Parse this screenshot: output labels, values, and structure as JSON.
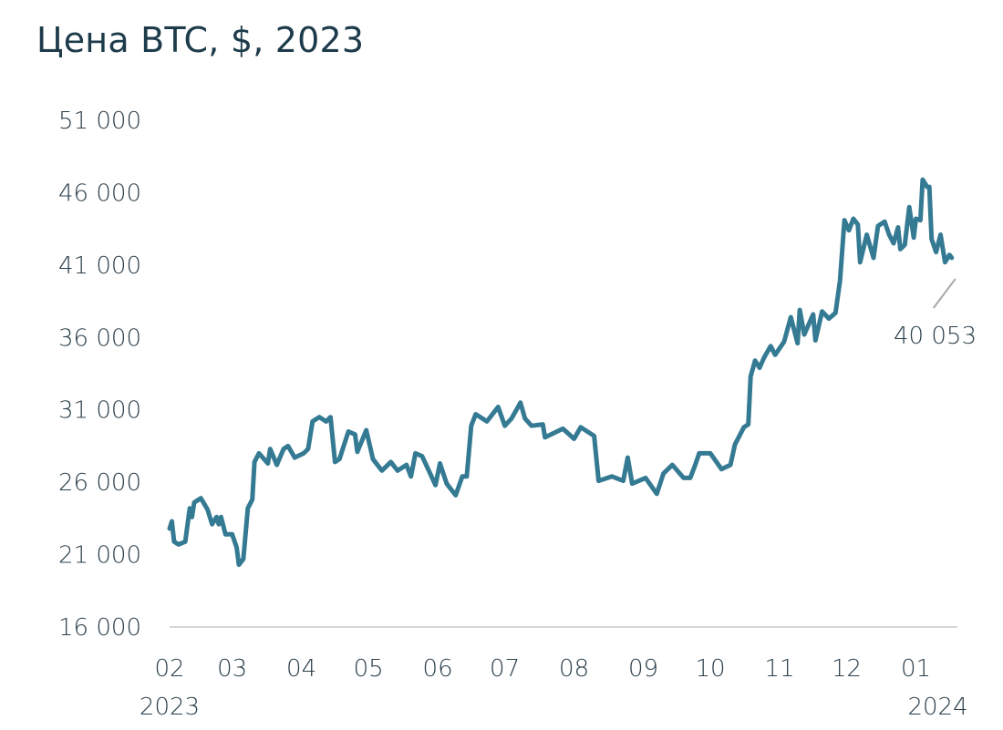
{
  "chart_data": {
    "type": "line",
    "title": "Цена BTC, $, 2023",
    "xlabel": "",
    "ylabel": "",
    "ylim": [
      16000,
      51000
    ],
    "yticks": [
      16000,
      21000,
      26000,
      31000,
      36000,
      41000,
      46000,
      51000
    ],
    "ytick_labels": [
      "16 000",
      "21 000",
      "26 000",
      "31 000",
      "36 000",
      "41 000",
      "46 000",
      "51 000"
    ],
    "xticks": [
      {
        "date": "2023-02-01",
        "label": "02",
        "year": "2023"
      },
      {
        "date": "2023-03-01",
        "label": "03"
      },
      {
        "date": "2023-04-01",
        "label": "04"
      },
      {
        "date": "2023-05-01",
        "label": "05"
      },
      {
        "date": "2023-06-01",
        "label": "06"
      },
      {
        "date": "2023-07-01",
        "label": "07"
      },
      {
        "date": "2023-08-01",
        "label": "08"
      },
      {
        "date": "2023-09-01",
        "label": "09"
      },
      {
        "date": "2023-10-01",
        "label": "10"
      },
      {
        "date": "2023-11-01",
        "label": "11"
      },
      {
        "date": "2023-12-01",
        "label": "12"
      },
      {
        "date": "2024-01-01",
        "label": "01",
        "year": "2024"
      }
    ],
    "grid": false,
    "baseline": true,
    "line_color": "#357a93",
    "annotation": {
      "label": "40 053"
    },
    "series": [
      {
        "points": [
          [
            "2023-02-01",
            22800
          ],
          [
            "2023-02-02",
            23300
          ],
          [
            "2023-02-03",
            21900
          ],
          [
            "2023-02-05",
            21700
          ],
          [
            "2023-02-08",
            21900
          ],
          [
            "2023-02-10",
            24200
          ],
          [
            "2023-02-11",
            23600
          ],
          [
            "2023-02-12",
            24600
          ],
          [
            "2023-02-15",
            24900
          ],
          [
            "2023-02-18",
            24100
          ],
          [
            "2023-02-20",
            23100
          ],
          [
            "2023-02-22",
            23600
          ],
          [
            "2023-02-23",
            23100
          ],
          [
            "2023-02-24",
            23600
          ],
          [
            "2023-02-26",
            22400
          ],
          [
            "2023-03-01",
            22400
          ],
          [
            "2023-03-03",
            21500
          ],
          [
            "2023-03-04",
            20300
          ],
          [
            "2023-03-06",
            20700
          ],
          [
            "2023-03-08",
            24200
          ],
          [
            "2023-03-10",
            24800
          ],
          [
            "2023-03-11",
            27400
          ],
          [
            "2023-03-13",
            28000
          ],
          [
            "2023-03-17",
            27300
          ],
          [
            "2023-03-18",
            28300
          ],
          [
            "2023-03-21",
            27200
          ],
          [
            "2023-03-24",
            28300
          ],
          [
            "2023-03-26",
            28500
          ],
          [
            "2023-03-29",
            27700
          ],
          [
            "2023-04-02",
            28000
          ],
          [
            "2023-04-04",
            28300
          ],
          [
            "2023-04-06",
            30200
          ],
          [
            "2023-04-09",
            30500
          ],
          [
            "2023-04-12",
            30200
          ],
          [
            "2023-04-14",
            30500
          ],
          [
            "2023-04-16",
            27400
          ],
          [
            "2023-04-18",
            27600
          ],
          [
            "2023-04-22",
            29500
          ],
          [
            "2023-04-25",
            29300
          ],
          [
            "2023-04-26",
            28100
          ],
          [
            "2023-04-30",
            29600
          ],
          [
            "2023-05-03",
            27600
          ],
          [
            "2023-05-07",
            26800
          ],
          [
            "2023-05-11",
            27400
          ],
          [
            "2023-05-14",
            26800
          ],
          [
            "2023-05-18",
            27200
          ],
          [
            "2023-05-20",
            26400
          ],
          [
            "2023-05-22",
            28000
          ],
          [
            "2023-05-25",
            27800
          ],
          [
            "2023-05-28",
            26800
          ],
          [
            "2023-05-31",
            25800
          ],
          [
            "2023-06-02",
            27300
          ],
          [
            "2023-06-05",
            25900
          ],
          [
            "2023-06-09",
            25100
          ],
          [
            "2023-06-12",
            26400
          ],
          [
            "2023-06-14",
            26400
          ],
          [
            "2023-06-16",
            29900
          ],
          [
            "2023-06-18",
            30700
          ],
          [
            "2023-06-23",
            30200
          ],
          [
            "2023-06-28",
            31200
          ],
          [
            "2023-07-01",
            29900
          ],
          [
            "2023-07-04",
            30400
          ],
          [
            "2023-07-08",
            31500
          ],
          [
            "2023-07-10",
            30400
          ],
          [
            "2023-07-13",
            29900
          ],
          [
            "2023-07-18",
            30000
          ],
          [
            "2023-07-19",
            29100
          ],
          [
            "2023-07-27",
            29700
          ],
          [
            "2023-08-01",
            29000
          ],
          [
            "2023-08-04",
            29800
          ],
          [
            "2023-08-10",
            29200
          ],
          [
            "2023-08-12",
            26100
          ],
          [
            "2023-08-18",
            26400
          ],
          [
            "2023-08-23",
            26100
          ],
          [
            "2023-08-25",
            27700
          ],
          [
            "2023-08-27",
            25900
          ],
          [
            "2023-09-02",
            26300
          ],
          [
            "2023-09-07",
            25200
          ],
          [
            "2023-09-10",
            26600
          ],
          [
            "2023-09-14",
            27200
          ],
          [
            "2023-09-19",
            26300
          ],
          [
            "2023-09-22",
            26300
          ],
          [
            "2023-09-24",
            27100
          ],
          [
            "2023-09-26",
            28000
          ],
          [
            "2023-10-01",
            28000
          ],
          [
            "2023-10-06",
            26900
          ],
          [
            "2023-10-10",
            27200
          ],
          [
            "2023-10-12",
            28600
          ],
          [
            "2023-10-16",
            29800
          ],
          [
            "2023-10-18",
            30000
          ],
          [
            "2023-10-19",
            33300
          ],
          [
            "2023-10-21",
            34400
          ],
          [
            "2023-10-23",
            33900
          ],
          [
            "2023-10-25",
            34600
          ],
          [
            "2023-10-28",
            35400
          ],
          [
            "2023-10-30",
            34800
          ],
          [
            "2023-11-03",
            35700
          ],
          [
            "2023-11-06",
            37400
          ],
          [
            "2023-11-09",
            35600
          ],
          [
            "2023-11-10",
            37900
          ],
          [
            "2023-11-12",
            36200
          ],
          [
            "2023-11-16",
            37600
          ],
          [
            "2023-11-17",
            35800
          ],
          [
            "2023-11-20",
            37800
          ],
          [
            "2023-11-23",
            37300
          ],
          [
            "2023-11-26",
            37700
          ],
          [
            "2023-11-28",
            39900
          ],
          [
            "2023-11-30",
            44100
          ],
          [
            "2023-12-02",
            43400
          ],
          [
            "2023-12-04",
            44200
          ],
          [
            "2023-12-06",
            43800
          ],
          [
            "2023-12-07",
            41200
          ],
          [
            "2023-12-10",
            43100
          ],
          [
            "2023-12-13",
            41500
          ],
          [
            "2023-12-15",
            43700
          ],
          [
            "2023-12-18",
            44000
          ],
          [
            "2023-12-20",
            43100
          ],
          [
            "2023-12-22",
            42500
          ],
          [
            "2023-12-24",
            43600
          ],
          [
            "2023-12-25",
            42100
          ],
          [
            "2023-12-27",
            42400
          ],
          [
            "2023-12-29",
            45000
          ],
          [
            "2023-12-31",
            42900
          ],
          [
            "2024-01-01",
            44200
          ],
          [
            "2024-01-03",
            44100
          ],
          [
            "2024-01-04",
            46900
          ],
          [
            "2024-01-06",
            46400
          ],
          [
            "2024-01-07",
            46400
          ],
          [
            "2024-01-08",
            42800
          ],
          [
            "2024-01-10",
            41900
          ],
          [
            "2024-01-12",
            43100
          ],
          [
            "2024-01-14",
            41200
          ],
          [
            "2024-01-16",
            41700
          ],
          [
            "2024-01-17",
            41500
          ]
        ]
      }
    ]
  }
}
